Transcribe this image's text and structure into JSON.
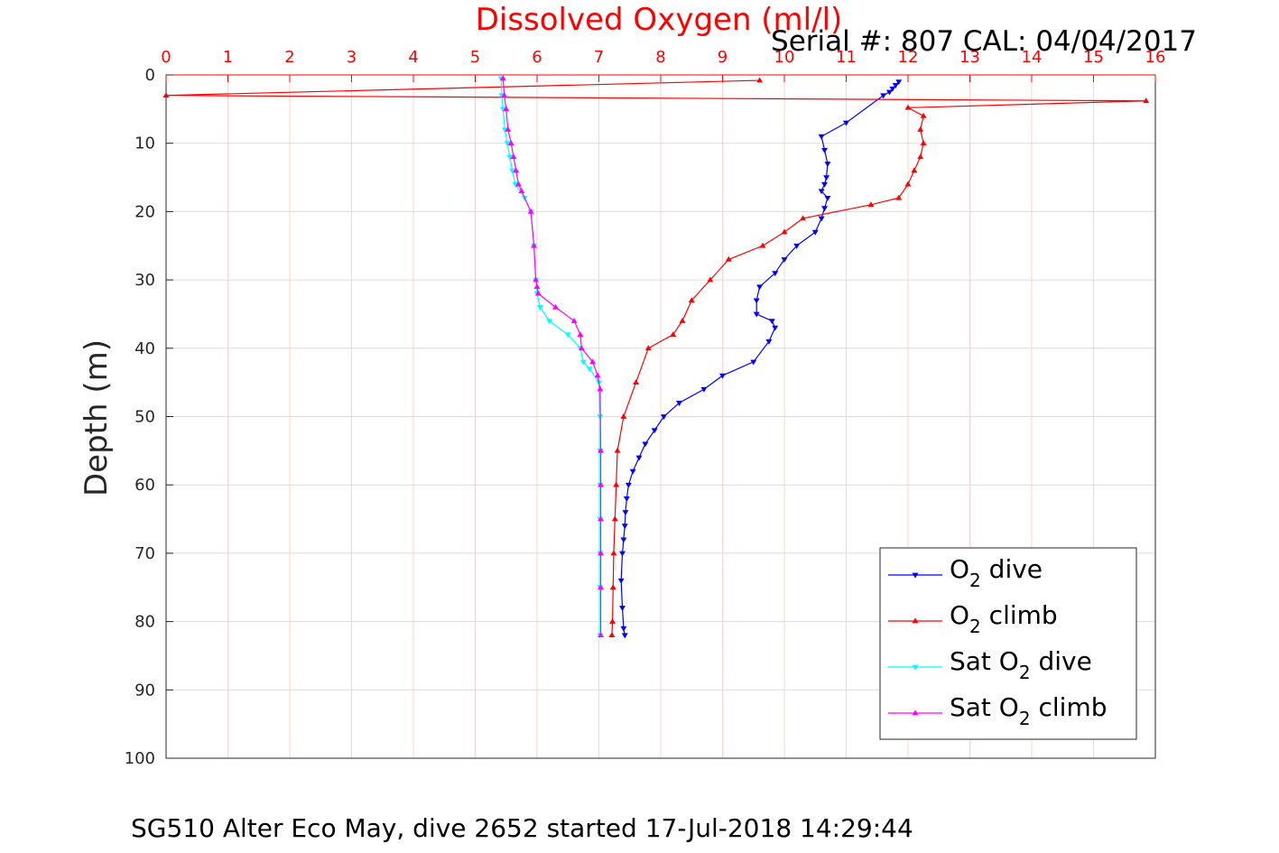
{
  "chart_data": {
    "type": "line",
    "title": "Dissolved Oxygen (ml/l)",
    "subtitle": "Serial #: 807  CAL: 04/04/2017",
    "footer": "SG510 Alter Eco May, dive 2652 started 17-Jul-2018 14:29:44",
    "xlabel": "",
    "ylabel": "Depth (m)",
    "xlim": [
      0,
      16
    ],
    "ylim": [
      0,
      100
    ],
    "y_reversed": true,
    "x_axis_position": "top",
    "x_ticks": [
      "0",
      "1",
      "2",
      "3",
      "4",
      "5",
      "6",
      "7",
      "8",
      "9",
      "10",
      "11",
      "12",
      "13",
      "14",
      "15",
      "16"
    ],
    "y_ticks": [
      "0",
      "10",
      "20",
      "30",
      "40",
      "50",
      "60",
      "70",
      "80",
      "90",
      "100"
    ],
    "grid": true,
    "legend_position": "bottom-right",
    "colors": {
      "axis_x": "#ff0000",
      "grid": "#d8d8d8",
      "axis": "#262626"
    },
    "series": [
      {
        "name": "O2 dive",
        "legend_main": "O",
        "legend_sub": "2",
        "legend_rest": " dive",
        "color": "#0000ff",
        "marker": "down-triangle",
        "x": [
          11.85,
          11.8,
          11.75,
          11.7,
          11.6,
          11.0,
          10.6,
          10.65,
          10.7,
          10.68,
          10.65,
          10.6,
          10.7,
          10.65,
          10.6,
          10.5,
          10.2,
          10.0,
          9.85,
          9.6,
          9.55,
          9.55,
          9.8,
          9.85,
          9.75,
          9.5,
          9.0,
          8.7,
          8.3,
          8.05,
          7.9,
          7.75,
          7.65,
          7.55,
          7.48,
          7.45,
          7.43,
          7.42,
          7.4,
          7.38,
          7.36,
          7.38,
          7.4,
          7.42
        ],
        "y": [
          1,
          1.5,
          2,
          2.5,
          3,
          7,
          9,
          11,
          13,
          15,
          16,
          17,
          18,
          19.5,
          21,
          23,
          25,
          27,
          29,
          31,
          33,
          35,
          36,
          37,
          39,
          42,
          44,
          46,
          48,
          50,
          52,
          54,
          56,
          58,
          60,
          62,
          64,
          66,
          68,
          70,
          74,
          78,
          81,
          82
        ]
      },
      {
        "name": "O2 climb",
        "legend_main": "O",
        "legend_sub": "2",
        "legend_rest": " climb",
        "color": "#ff0000",
        "marker": "up-triangle",
        "x": [
          9.6,
          0,
          15.85,
          12.0,
          12.25,
          12.2,
          12.25,
          12.2,
          12.1,
          12.0,
          11.85,
          11.4,
          10.3,
          10.0,
          9.65,
          9.1,
          8.8,
          8.5,
          8.35,
          8.2,
          7.8,
          7.6,
          7.4,
          7.3,
          7.28,
          7.26,
          7.24,
          7.23,
          7.22,
          7.21
        ],
        "y": [
          0.8,
          3,
          3.8,
          4.8,
          6,
          8,
          10,
          12,
          14,
          16,
          18,
          19,
          21,
          23,
          25,
          27,
          30,
          33,
          36,
          38,
          40,
          45,
          50,
          55,
          60,
          65,
          70,
          75,
          80,
          82
        ]
      },
      {
        "name": "Sat O2 dive",
        "legend_main": "Sat O",
        "legend_sub": "2",
        "legend_rest": " dive",
        "color": "#00ffff",
        "marker": "down-triangle",
        "x": [
          5.42,
          5.43,
          5.45,
          5.48,
          5.52,
          5.56,
          5.6,
          5.65,
          5.8,
          5.9,
          5.95,
          5.98,
          6.0,
          6.05,
          6.2,
          6.5,
          6.7,
          6.75,
          6.85,
          7.0,
          7.02,
          7.02,
          7.02,
          7.02,
          7.02,
          7.02,
          7.02
        ],
        "y": [
          0.5,
          3,
          5,
          8,
          10,
          12,
          14,
          16,
          18,
          20,
          25,
          30,
          32,
          34,
          36,
          38,
          40,
          42,
          43,
          45,
          50,
          55,
          60,
          65,
          70,
          75,
          82
        ]
      },
      {
        "name": "Sat O2 climb",
        "legend_main": "Sat O",
        "legend_sub": "2",
        "legend_rest": " climb",
        "color": "#ff00ff",
        "marker": "up-triangle",
        "x": [
          5.45,
          5.47,
          5.5,
          5.53,
          5.58,
          5.62,
          5.66,
          5.7,
          5.75,
          5.9,
          5.95,
          5.98,
          6.0,
          6.02,
          6.3,
          6.6,
          6.7,
          6.72,
          6.9,
          6.98,
          7.02,
          7.03,
          7.03,
          7.03,
          7.03,
          7.03,
          7.03
        ],
        "y": [
          0.5,
          3,
          5,
          8,
          10,
          12,
          14,
          16,
          17,
          20,
          25,
          30,
          31,
          32,
          34,
          36,
          38,
          40,
          42,
          44,
          46,
          55,
          60,
          65,
          70,
          75,
          82
        ]
      }
    ]
  }
}
